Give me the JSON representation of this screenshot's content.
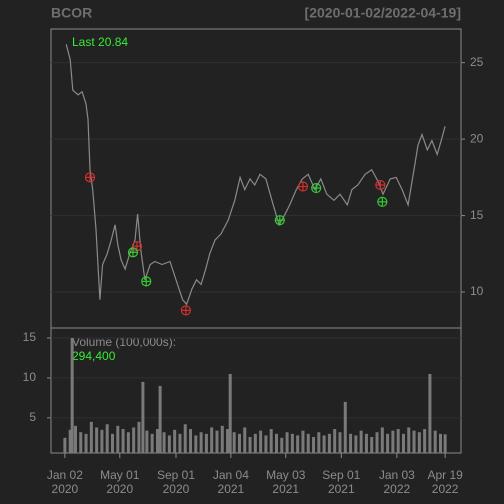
{
  "chart_data": {
    "type": "line",
    "title": "BCOR",
    "subtitle": "[2020-01-02/2022-04-19]",
    "annotation": "Last 20.84",
    "series": [
      {
        "color": "#8a8a8a",
        "x": [
          2,
          8,
          12,
          20,
          26,
          32,
          35,
          38,
          42,
          47,
          53,
          57,
          64,
          70,
          76,
          80,
          85,
          91,
          98,
          106,
          110,
          115,
          121,
          129,
          136,
          147,
          159,
          168,
          178,
          184,
          192,
          199,
          206,
          213,
          219,
          227,
          236,
          247,
          257,
          265,
          272,
          280,
          287,
          295,
          304,
          313,
          324,
          333,
          340,
          350,
          359,
          368,
          378,
          387,
          396,
          407,
          416,
          427,
          434,
          443,
          454,
          464,
          474,
          481,
          492,
          501,
          510,
          519,
          528,
          534,
          540,
          548,
          555,
          563,
          569,
          575
        ],
        "values": [
          26.2,
          25.2,
          23.2,
          22.9,
          23.1,
          22.3,
          21.3,
          18.0,
          16.7,
          14.1,
          9.5,
          11.8,
          12.5,
          13.4,
          14.4,
          13.1,
          12.1,
          11.5,
          12.5,
          13.4,
          15.1,
          12.7,
          10.8,
          11.8,
          12.0,
          11.8,
          12.0,
          10.8,
          9.5,
          9.2,
          10.2,
          10.8,
          10.5,
          11.5,
          12.5,
          13.4,
          13.8,
          14.7,
          16.0,
          17.5,
          16.7,
          17.4,
          17.0,
          17.7,
          17.4,
          16.0,
          14.4,
          15.1,
          15.7,
          16.7,
          17.4,
          17.7,
          16.7,
          17.4,
          16.4,
          16.0,
          16.4,
          15.7,
          16.7,
          17.0,
          17.7,
          18.0,
          17.2,
          16.4,
          17.4,
          17.5,
          16.7,
          15.7,
          18.0,
          19.6,
          20.3,
          19.3,
          19.9,
          19.0,
          19.9,
          20.84
        ]
      }
    ],
    "markers": [
      {
        "color": "#d03030",
        "x": [
          38,
          109,
          183,
          360,
          477
        ],
        "values": [
          17.5,
          13.0,
          8.8,
          16.9,
          17.0
        ]
      },
      {
        "color": "#33cc33",
        "x": [
          103,
          123,
          325,
          380,
          480
        ],
        "values": [
          12.6,
          10.7,
          14.7,
          16.8,
          15.9
        ]
      }
    ],
    "xlim": [
      -21,
      599
    ],
    "xticks": [
      {
        "value": 0,
        "label": "Jan 02",
        "year": "2020"
      },
      {
        "value": 83,
        "label": "May 01",
        "year": "2020"
      },
      {
        "value": 168,
        "label": "Sep 01",
        "year": "2020"
      },
      {
        "value": 251,
        "label": "Jan 04",
        "year": "2021"
      },
      {
        "value": 334,
        "label": "May 03",
        "year": "2021"
      },
      {
        "value": 418,
        "label": "Sep 01",
        "year": "2021"
      },
      {
        "value": 502,
        "label": "Jan 03",
        "year": "2022"
      },
      {
        "value": 575,
        "label": "Apr 19",
        "year": "2022"
      }
    ],
    "ylim": [
      7.65,
      27.2
    ],
    "yticks": [
      10,
      15,
      20,
      25
    ],
    "grid": true,
    "volume": {
      "label": "Volume (100,000s):",
      "annotation": "294,400",
      "color": "#7a7a7a",
      "x": [
        0,
        8,
        11,
        16,
        24,
        32,
        40,
        48,
        56,
        64,
        72,
        80,
        88,
        96,
        104,
        112,
        118,
        124,
        132,
        140,
        144,
        150,
        158,
        166,
        174,
        182,
        190,
        198,
        206,
        214,
        222,
        230,
        238,
        246,
        250,
        256,
        264,
        272,
        280,
        288,
        296,
        304,
        312,
        320,
        328,
        336,
        344,
        352,
        360,
        368,
        376,
        384,
        392,
        400,
        408,
        416,
        424,
        432,
        440,
        448,
        456,
        464,
        472,
        480,
        488,
        496,
        504,
        512,
        520,
        528,
        536,
        544,
        552,
        560,
        568,
        575
      ],
      "values": [
        2.5,
        3.5,
        15.0,
        4.0,
        3.2,
        3.0,
        4.5,
        3.8,
        3.5,
        4.2,
        3.0,
        4.0,
        3.6,
        3.2,
        3.8,
        4.5,
        9.5,
        3.4,
        3.0,
        3.6,
        9.0,
        3.2,
        2.8,
        3.5,
        3.0,
        4.2,
        3.6,
        2.8,
        3.2,
        3.0,
        3.8,
        3.4,
        4.0,
        3.6,
        10.5,
        3.2,
        3.0,
        3.8,
        2.6,
        3.0,
        3.4,
        2.8,
        3.6,
        3.0,
        2.5,
        3.2,
        3.0,
        2.8,
        3.4,
        3.0,
        2.6,
        3.2,
        2.8,
        3.0,
        3.6,
        3.2,
        7.0,
        3.0,
        2.8,
        3.4,
        3.0,
        2.6,
        3.2,
        3.8,
        3.0,
        3.4,
        3.6,
        3.0,
        3.8,
        3.4,
        3.2,
        3.6,
        10.5,
        3.4,
        3.0,
        2.944
      ],
      "ylim": [
        0.6,
        16.25
      ],
      "yticks": [
        5,
        10,
        15
      ]
    }
  }
}
